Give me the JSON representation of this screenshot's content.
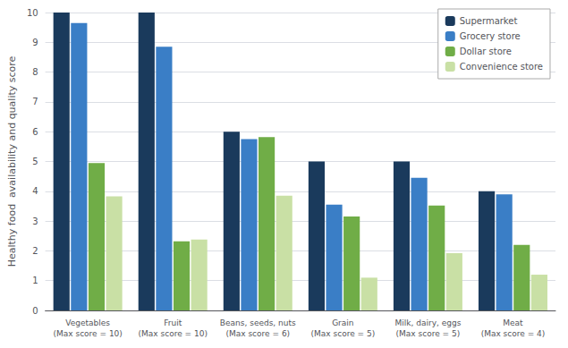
{
  "chart_data": {
    "type": "bar",
    "categories": [
      "Vegetables\n(Max score = 10)",
      "Fruit\n(Max score = 10)",
      "Beans, seeds, nuts\n(Max score = 6)",
      "Grain\n(Max score = 5)",
      "Milk, dairy, eggs\n(Max score = 5)",
      "Meat\n(Max score = 4)"
    ],
    "series": [
      {
        "name": "Supermarket",
        "color": "#1a3a5c",
        "values": [
          10.0,
          10.0,
          6.0,
          5.0,
          5.0,
          4.0
        ]
      },
      {
        "name": "Grocery store",
        "color": "#3a7ec6",
        "values": [
          9.65,
          8.85,
          5.75,
          3.55,
          4.45,
          3.9
        ]
      },
      {
        "name": "Dollar store",
        "color": "#70ad47",
        "values": [
          4.95,
          2.32,
          5.82,
          3.15,
          3.52,
          2.2
        ]
      },
      {
        "name": "Convenience store",
        "color": "#c9e0a5",
        "values": [
          3.83,
          2.38,
          3.85,
          1.1,
          1.92,
          1.2
        ]
      }
    ],
    "ylabel": "Healthy food  availability and quality score",
    "ylim": [
      0,
      10
    ],
    "yticks": [
      0,
      1,
      2,
      3,
      4,
      5,
      6,
      7,
      8,
      9,
      10
    ],
    "grid": true,
    "legend": "upper right"
  }
}
